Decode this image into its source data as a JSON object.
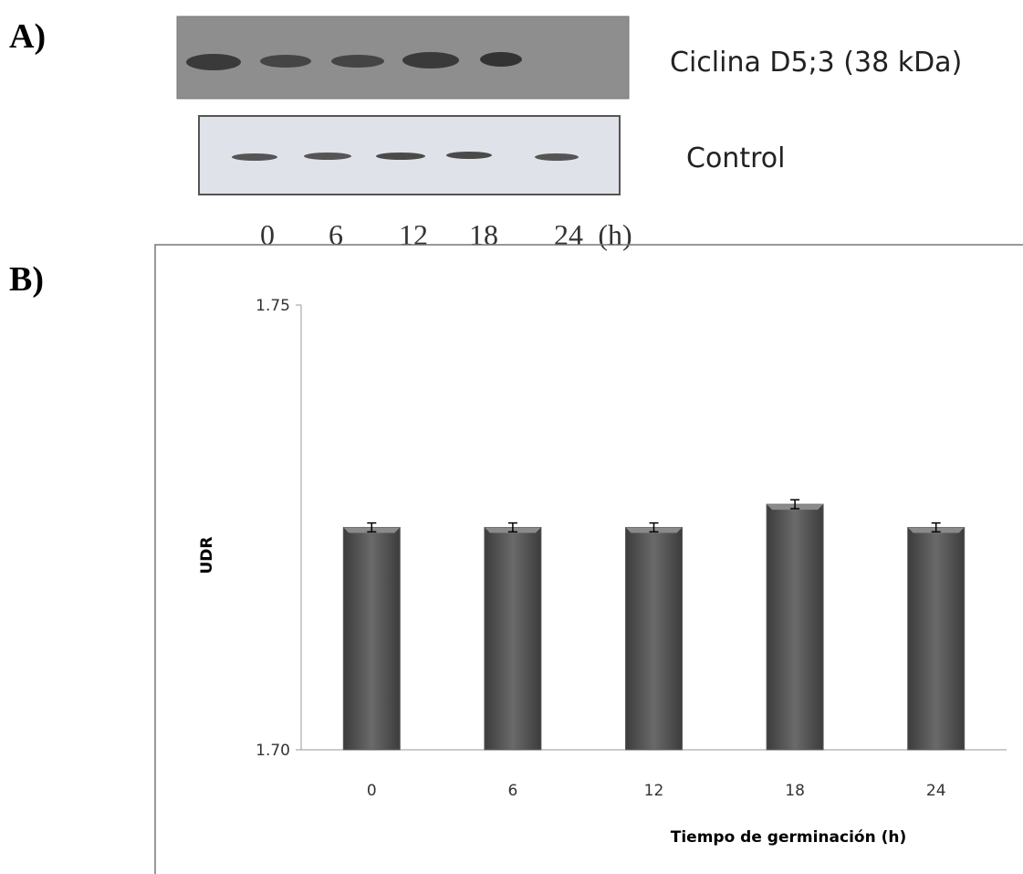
{
  "panel_a": {
    "label": "A)",
    "blot_labels": [
      "Ciclina D5;3 (38 kDa)",
      "Control"
    ],
    "lanes": [
      "0",
      "6",
      "12",
      "18",
      "24"
    ],
    "lane_unit": "(h)"
  },
  "chart_data": {
    "type": "bar",
    "panel_label": "B)",
    "y_label": "UDR",
    "x_label": "Tiempo de germinación (h)",
    "categories": [
      "0",
      "6",
      "12",
      "18",
      "24"
    ],
    "values": [
      1.725,
      1.725,
      1.725,
      1.7276,
      1.725
    ],
    "errors": [
      0.0005,
      0.0005,
      0.0005,
      0.0005,
      0.0005
    ],
    "color": "#5a5a5a",
    "ylim": [
      1.7,
      1.75
    ],
    "yticks": [
      {
        "value": 1.7,
        "label": "1.70"
      },
      1.75
    ]
  }
}
